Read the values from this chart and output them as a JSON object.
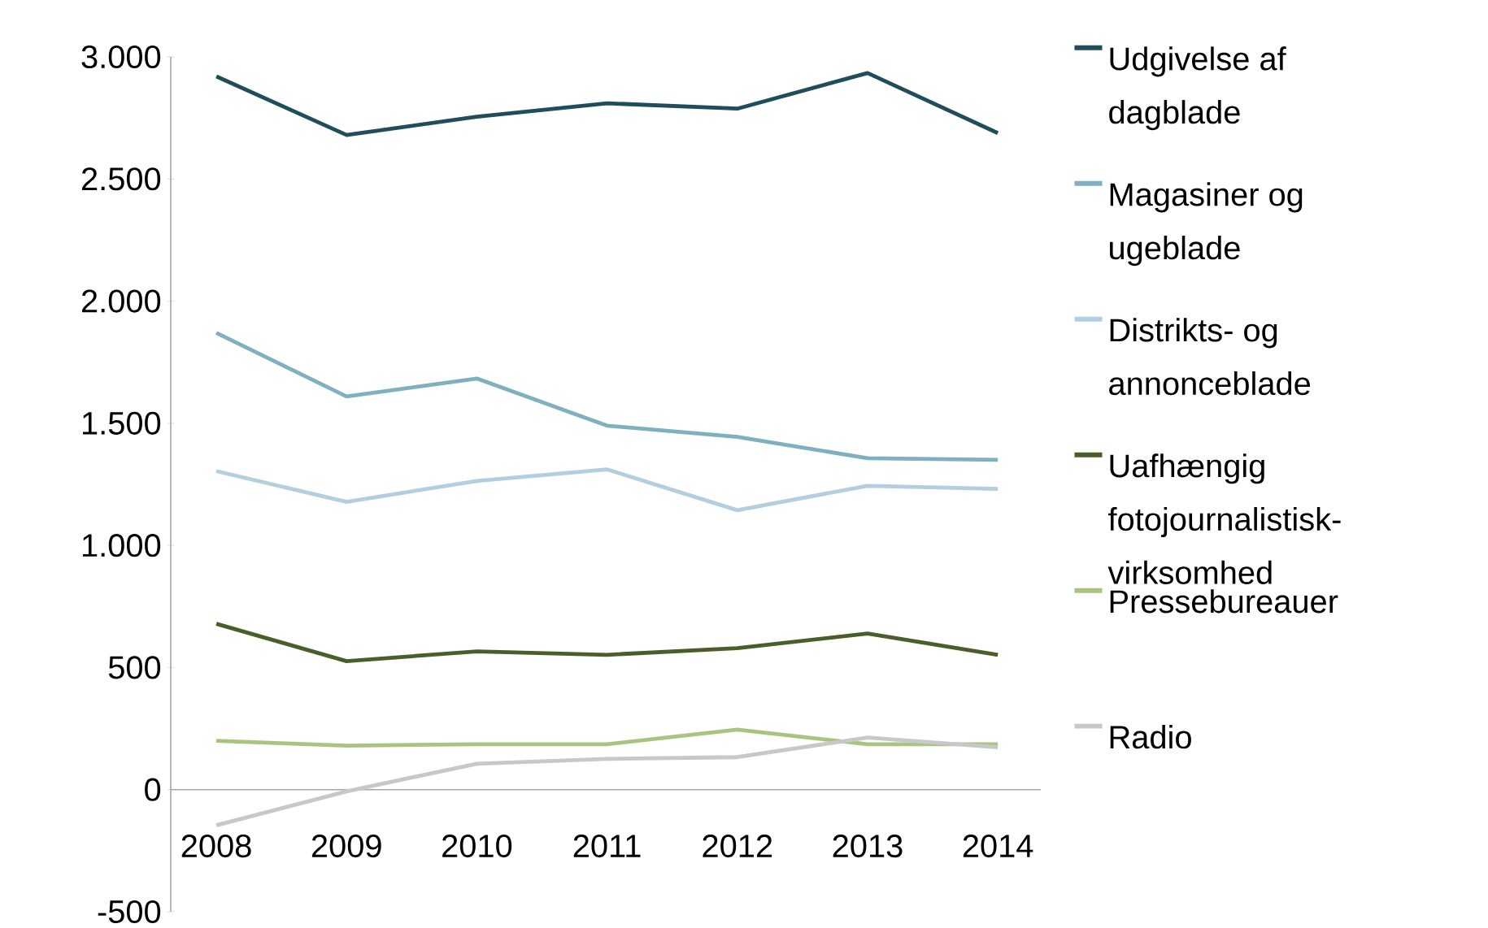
{
  "chart_data": {
    "type": "line",
    "categories": [
      "2008",
      "2009",
      "2010",
      "2011",
      "2012",
      "2013",
      "2014"
    ],
    "series": [
      {
        "name": "Udgivelse af dagblade",
        "color": "#1f4e5a",
        "values": [
          2920,
          2680,
          2755,
          2810,
          2788,
          2934,
          2688
        ]
      },
      {
        "name": "Magasiner og ugeblade",
        "color": "#7fb0c0",
        "values": [
          1870,
          1610,
          1683,
          1490,
          1444,
          1357,
          1350
        ]
      },
      {
        "name": "Distrikts- og annonceblade",
        "color": "#b3cede",
        "values": [
          1304,
          1178,
          1264,
          1311,
          1144,
          1244,
          1231
        ]
      },
      {
        "name": "Uafhængig fotojournalistisk-virksomhed",
        "color": "#4a5e2a",
        "values": [
          679,
          526,
          566,
          552,
          579,
          639,
          552
        ]
      },
      {
        "name": "Pressebureauer",
        "color": "#a9c47f",
        "values": [
          200,
          180,
          186,
          186,
          246,
          186,
          186
        ]
      },
      {
        "name": "Radio",
        "color": "#c8c8c8",
        "values": [
          -146,
          -7,
          106,
          126,
          133,
          213,
          173
        ]
      }
    ],
    "ylim": [
      -500,
      3000
    ],
    "yticks": [
      {
        "value": -500,
        "label": "-500"
      },
      0,
      500,
      {
        "value": 1000,
        "label": "1.000"
      },
      {
        "value": 1500,
        "label": "1.500"
      },
      {
        "value": 2000,
        "label": "2.000"
      },
      {
        "value": 2500,
        "label": "2.500"
      },
      {
        "value": 3000,
        "label": "3.000"
      }
    ],
    "legend": "right",
    "marker": "none",
    "line_style": "solid"
  }
}
